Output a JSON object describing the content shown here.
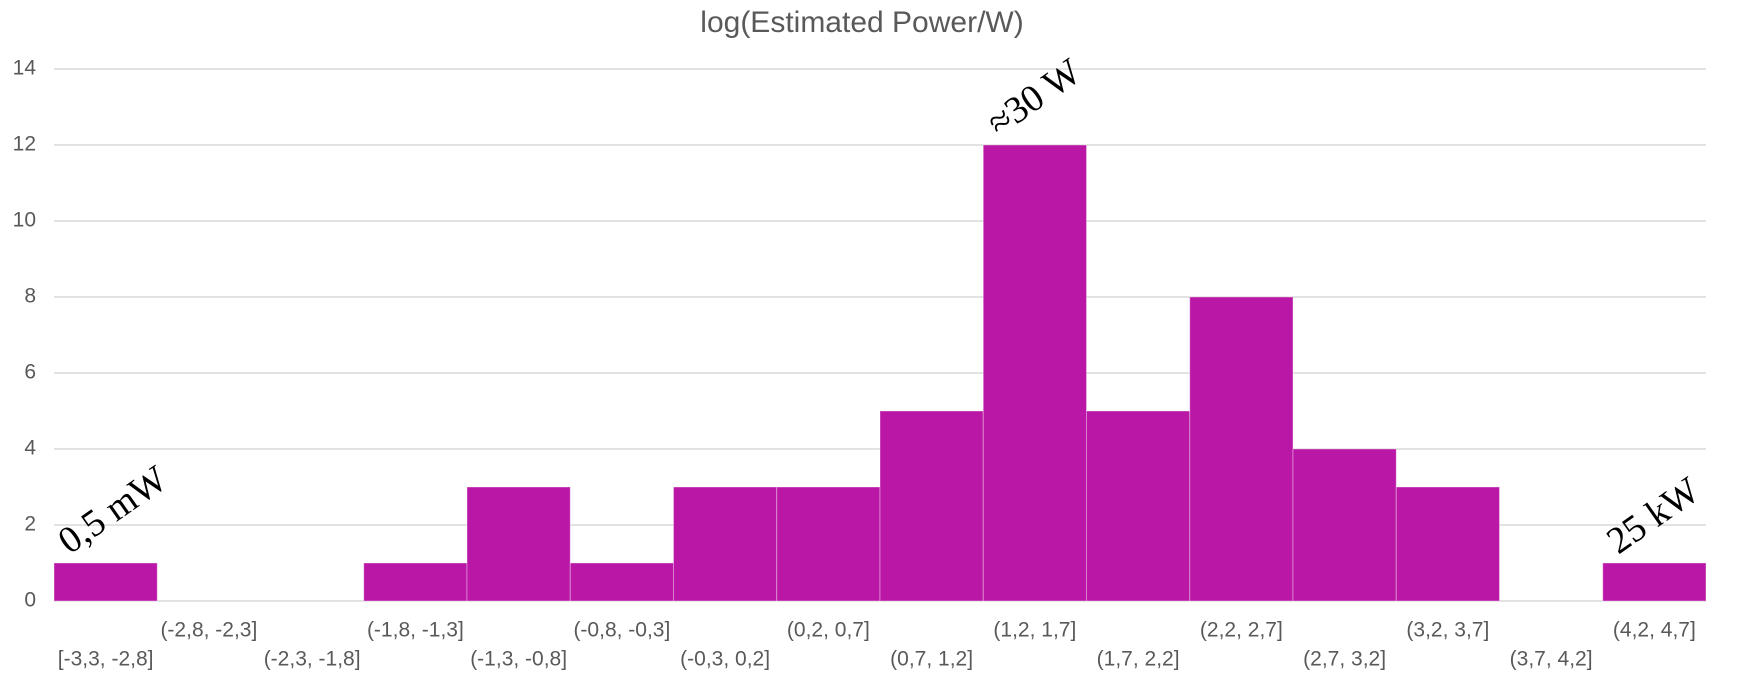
{
  "chart_data": {
    "type": "bar",
    "title": "log(Estimated Power/W)",
    "categories": [
      "[-3,3, -2,8]",
      "(-2,8, -2,3]",
      "(-2,3, -1,8]",
      "(-1,8, -1,3]",
      "(-1,3, -0,8]",
      "(-0,8, -0,3]",
      "(-0,3, 0,2]",
      "(0,2, 0,7]",
      "(0,7, 1,2]",
      "(1,2, 1,7]",
      "(1,7, 2,2]",
      "(2,2, 2,7]",
      "(2,7, 3,2]",
      "(3,2, 3,7]",
      "(3,7, 4,2]",
      "(4,2, 4,7]"
    ],
    "values": [
      1,
      0,
      0,
      1,
      3,
      1,
      3,
      3,
      5,
      12,
      5,
      8,
      4,
      3,
      0,
      1
    ],
    "color": "#ba17a6",
    "ylim": [
      0,
      14
    ],
    "yticks": [
      0,
      2,
      4,
      6,
      8,
      10,
      12,
      14
    ],
    "grid": true,
    "annotations": [
      {
        "text": "0,5 mW",
        "category": "[-3,3, -2,8]"
      },
      {
        "text": "≈30 W",
        "category": "(1,2, 1,7]"
      },
      {
        "text": "25 kW",
        "category": "(4,2, 4,7]"
      }
    ]
  }
}
